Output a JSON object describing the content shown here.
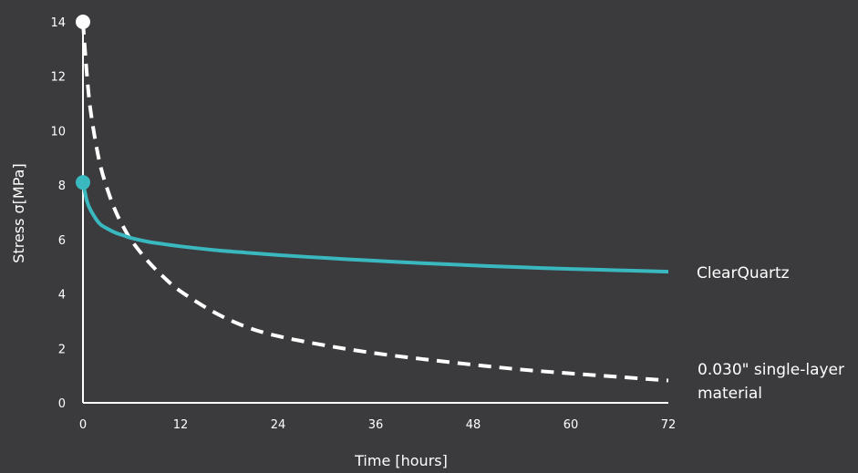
{
  "colors": {
    "background": "#3b3b3d",
    "axis": "#ffffff",
    "clearquartz": "#3ab8bf",
    "single_layer": "#ffffff"
  },
  "chart_data": {
    "type": "line",
    "title": "",
    "xlabel": "Time [hours]",
    "ylabel": "Stress  σ[MPa]",
    "xlim": [
      0,
      72
    ],
    "ylim": [
      0,
      14
    ],
    "x_ticks": [
      0,
      12,
      24,
      36,
      48,
      60,
      72
    ],
    "y_ticks": [
      0,
      2,
      4,
      6,
      8,
      10,
      12,
      14
    ],
    "grid": false,
    "legend": "none (series labeled directly at line ends)",
    "series": [
      {
        "name": "ClearQuartz",
        "style": "solid",
        "color": "#3ab8bf",
        "marker_at_start": true,
        "x": [
          0,
          0.5,
          1,
          2,
          3,
          4,
          5,
          6,
          8,
          10,
          12,
          16,
          20,
          24,
          30,
          36,
          42,
          48,
          54,
          60,
          66,
          72
        ],
        "y": [
          8.1,
          7.4,
          7.05,
          6.6,
          6.4,
          6.25,
          6.15,
          6.05,
          5.92,
          5.83,
          5.75,
          5.62,
          5.52,
          5.43,
          5.32,
          5.22,
          5.13,
          5.05,
          4.98,
          4.92,
          4.87,
          4.82
        ]
      },
      {
        "name": "0.030\" single-layer material",
        "label_lines": [
          "0.030\" single-layer",
          "material"
        ],
        "style": "dashed",
        "color": "#ffffff",
        "marker_at_start": true,
        "x": [
          0,
          0.5,
          1,
          2,
          3,
          4,
          5,
          6,
          8,
          10,
          12,
          16,
          20,
          24,
          30,
          36,
          42,
          48,
          54,
          60,
          66,
          72
        ],
        "y": [
          14.0,
          12.0,
          10.6,
          8.9,
          7.85,
          7.05,
          6.45,
          5.95,
          5.2,
          4.6,
          4.1,
          3.35,
          2.8,
          2.45,
          2.1,
          1.82,
          1.6,
          1.4,
          1.22,
          1.08,
          0.95,
          0.82
        ]
      }
    ]
  }
}
